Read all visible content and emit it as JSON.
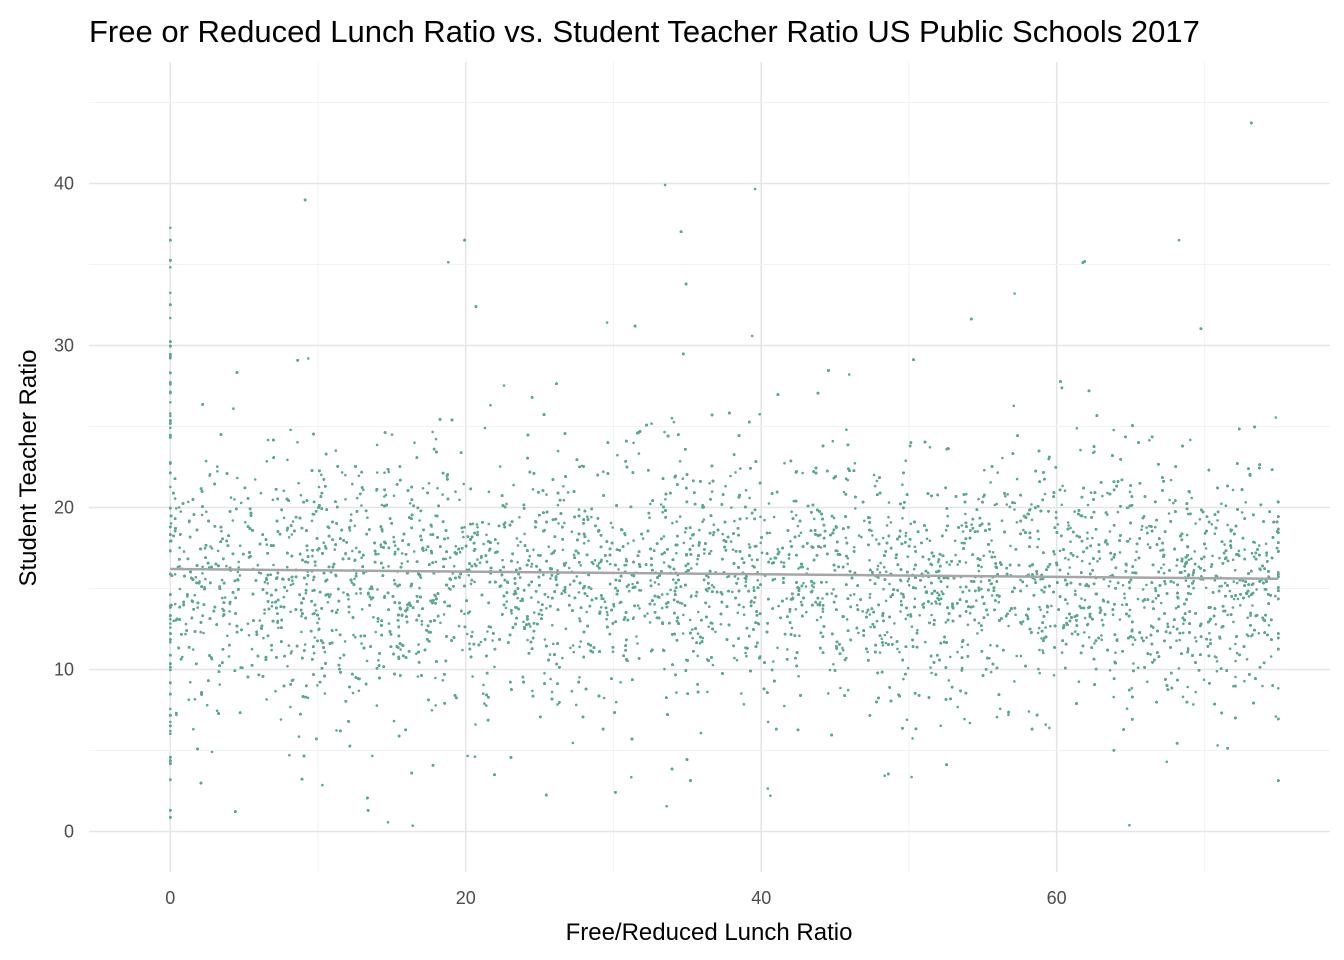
{
  "chart_data": {
    "type": "scatter",
    "title": "Free or Reduced Lunch Ratio vs. Student Teacher Ratio US Public Schools 2017",
    "xlabel": "Free/Reduced Lunch Ratio",
    "ylabel": "Student Teacher Ratio",
    "xlim": [
      -5.5,
      78.5
    ],
    "ylim": [
      -2.5,
      47.5
    ],
    "x_ticks": [
      0,
      20,
      40,
      60
    ],
    "y_ticks": [
      0,
      10,
      20,
      30,
      40
    ],
    "x_tick_labels": [
      "0",
      "20",
      "40",
      "60"
    ],
    "y_tick_labels": [
      "0",
      "10",
      "20",
      "30",
      "40"
    ],
    "grid": true,
    "legend": "none",
    "point_color": "#5aa88f",
    "trend_color": "#a6a6a6",
    "series": [
      {
        "kind": "points",
        "x_range": [
          0,
          75
        ],
        "y_range": [
          0,
          45
        ],
        "y_center": 15.5,
        "y_core_spread": [
          10,
          25
        ],
        "note_points": "dense cloud of individual schools"
      }
    ],
    "trend_line": {
      "x": [
        0,
        75
      ],
      "y": [
        16.2,
        15.6
      ]
    }
  }
}
